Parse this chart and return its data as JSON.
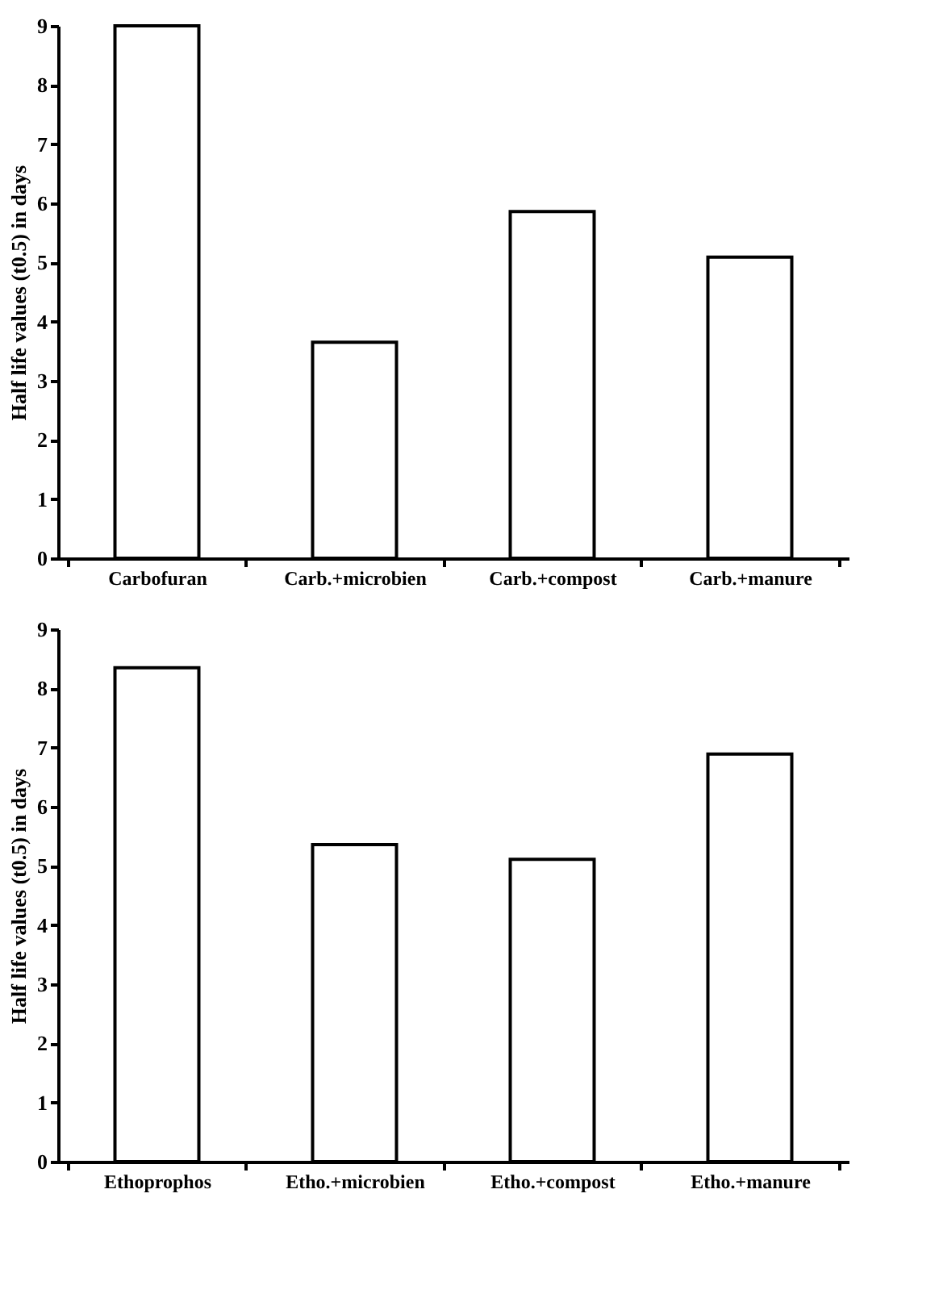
{
  "chart_data": [
    {
      "type": "bar",
      "ylabel": "Half life values (t0.5) in days",
      "categories": [
        "Carbofuran",
        "Carb.+microbien",
        "Carb.+compost",
        "Carb.+manure"
      ],
      "series": [
        {
          "color": "#ffffff",
          "values": [
            9.0,
            3.65,
            5.86,
            5.09
          ]
        }
      ],
      "ylim": [
        0,
        9
      ],
      "yticks": [
        0,
        1,
        2,
        3,
        4,
        5,
        6,
        7,
        8,
        9
      ],
      "grid": false
    },
    {
      "type": "bar",
      "ylabel": "Half life values (t0.5) in days",
      "categories": [
        "Ethoprophos",
        "Etho.+microbien",
        "Etho.+compost",
        "Etho.+manure"
      ],
      "series": [
        {
          "color": "#ffffff",
          "values": [
            8.35,
            5.36,
            5.11,
            6.89
          ]
        }
      ],
      "ylim": [
        0,
        9
      ],
      "yticks": [
        0,
        1,
        2,
        3,
        4,
        5,
        6,
        7,
        8,
        9
      ],
      "grid": false
    }
  ]
}
